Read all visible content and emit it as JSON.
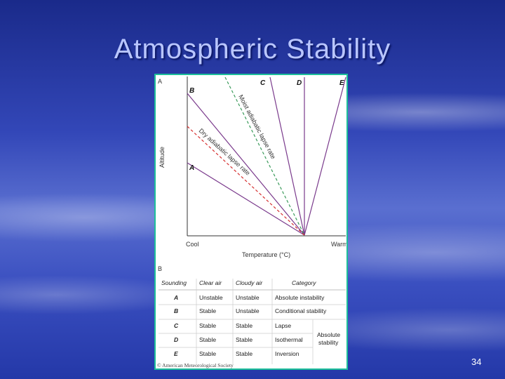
{
  "slide": {
    "title": "Atmospheric Stability",
    "page_number": "34"
  },
  "figure": {
    "panel_a_label": "A",
    "panel_b_label": "B",
    "y_axis_label": "Altitude",
    "x_axis_label": "Temperature (°C)",
    "x_left": "Cool",
    "x_right": "Warm",
    "line_labels": [
      "A",
      "B",
      "C",
      "D",
      "E"
    ],
    "moist_label": "Moist adiabatic lapse rate",
    "dry_label": "Dry adiabatic lapse rate",
    "colors": {
      "sounding": "#7a3a8c",
      "dry": "#d63030",
      "moist": "#3a9a5a",
      "frame": "#1dbf9a"
    },
    "credit": "© American Meteorological Society"
  },
  "table": {
    "headers": [
      "Sounding",
      "Clear air",
      "Cloudy air",
      "Category"
    ],
    "rows": [
      [
        "A",
        "Unstable",
        "Unstable",
        "Absolute instability"
      ],
      [
        "B",
        "Stable",
        "Unstable",
        "Conditional stability"
      ],
      [
        "C",
        "Stable",
        "Stable",
        "Lapse"
      ],
      [
        "D",
        "Stable",
        "Stable",
        "Isothermal"
      ],
      [
        "E",
        "Stable",
        "Stable",
        "Inversion"
      ]
    ],
    "merged_category": [
      "Absolute",
      "stability"
    ]
  }
}
